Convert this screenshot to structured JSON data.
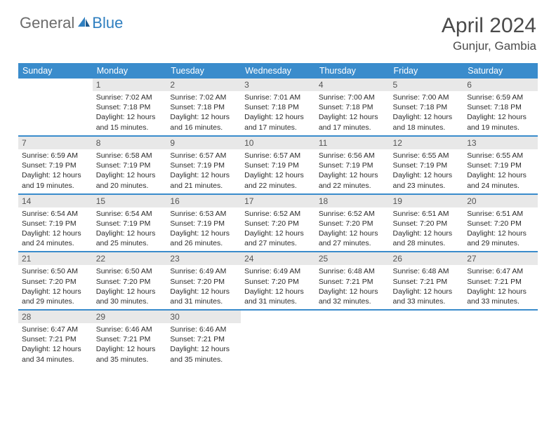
{
  "logo": {
    "general": "General",
    "blue": "Blue"
  },
  "title": "April 2024",
  "location": "Gunjur, Gambia",
  "colors": {
    "header_bg": "#3a8ccc",
    "header_text": "#ffffff",
    "daynum_bg": "#e8e8e8",
    "border": "#3a8ccc",
    "logo_gray": "#6b6b6b",
    "logo_blue": "#2f7fc0"
  },
  "weekdays": [
    "Sunday",
    "Monday",
    "Tuesday",
    "Wednesday",
    "Thursday",
    "Friday",
    "Saturday"
  ],
  "weeks": [
    [
      {
        "n": "",
        "sr": "",
        "ss": "",
        "dl": ""
      },
      {
        "n": "1",
        "sr": "Sunrise: 7:02 AM",
        "ss": "Sunset: 7:18 PM",
        "dl": "Daylight: 12 hours and 15 minutes."
      },
      {
        "n": "2",
        "sr": "Sunrise: 7:02 AM",
        "ss": "Sunset: 7:18 PM",
        "dl": "Daylight: 12 hours and 16 minutes."
      },
      {
        "n": "3",
        "sr": "Sunrise: 7:01 AM",
        "ss": "Sunset: 7:18 PM",
        "dl": "Daylight: 12 hours and 17 minutes."
      },
      {
        "n": "4",
        "sr": "Sunrise: 7:00 AM",
        "ss": "Sunset: 7:18 PM",
        "dl": "Daylight: 12 hours and 17 minutes."
      },
      {
        "n": "5",
        "sr": "Sunrise: 7:00 AM",
        "ss": "Sunset: 7:18 PM",
        "dl": "Daylight: 12 hours and 18 minutes."
      },
      {
        "n": "6",
        "sr": "Sunrise: 6:59 AM",
        "ss": "Sunset: 7:18 PM",
        "dl": "Daylight: 12 hours and 19 minutes."
      }
    ],
    [
      {
        "n": "7",
        "sr": "Sunrise: 6:59 AM",
        "ss": "Sunset: 7:19 PM",
        "dl": "Daylight: 12 hours and 19 minutes."
      },
      {
        "n": "8",
        "sr": "Sunrise: 6:58 AM",
        "ss": "Sunset: 7:19 PM",
        "dl": "Daylight: 12 hours and 20 minutes."
      },
      {
        "n": "9",
        "sr": "Sunrise: 6:57 AM",
        "ss": "Sunset: 7:19 PM",
        "dl": "Daylight: 12 hours and 21 minutes."
      },
      {
        "n": "10",
        "sr": "Sunrise: 6:57 AM",
        "ss": "Sunset: 7:19 PM",
        "dl": "Daylight: 12 hours and 22 minutes."
      },
      {
        "n": "11",
        "sr": "Sunrise: 6:56 AM",
        "ss": "Sunset: 7:19 PM",
        "dl": "Daylight: 12 hours and 22 minutes."
      },
      {
        "n": "12",
        "sr": "Sunrise: 6:55 AM",
        "ss": "Sunset: 7:19 PM",
        "dl": "Daylight: 12 hours and 23 minutes."
      },
      {
        "n": "13",
        "sr": "Sunrise: 6:55 AM",
        "ss": "Sunset: 7:19 PM",
        "dl": "Daylight: 12 hours and 24 minutes."
      }
    ],
    [
      {
        "n": "14",
        "sr": "Sunrise: 6:54 AM",
        "ss": "Sunset: 7:19 PM",
        "dl": "Daylight: 12 hours and 24 minutes."
      },
      {
        "n": "15",
        "sr": "Sunrise: 6:54 AM",
        "ss": "Sunset: 7:19 PM",
        "dl": "Daylight: 12 hours and 25 minutes."
      },
      {
        "n": "16",
        "sr": "Sunrise: 6:53 AM",
        "ss": "Sunset: 7:19 PM",
        "dl": "Daylight: 12 hours and 26 minutes."
      },
      {
        "n": "17",
        "sr": "Sunrise: 6:52 AM",
        "ss": "Sunset: 7:20 PM",
        "dl": "Daylight: 12 hours and 27 minutes."
      },
      {
        "n": "18",
        "sr": "Sunrise: 6:52 AM",
        "ss": "Sunset: 7:20 PM",
        "dl": "Daylight: 12 hours and 27 minutes."
      },
      {
        "n": "19",
        "sr": "Sunrise: 6:51 AM",
        "ss": "Sunset: 7:20 PM",
        "dl": "Daylight: 12 hours and 28 minutes."
      },
      {
        "n": "20",
        "sr": "Sunrise: 6:51 AM",
        "ss": "Sunset: 7:20 PM",
        "dl": "Daylight: 12 hours and 29 minutes."
      }
    ],
    [
      {
        "n": "21",
        "sr": "Sunrise: 6:50 AM",
        "ss": "Sunset: 7:20 PM",
        "dl": "Daylight: 12 hours and 29 minutes."
      },
      {
        "n": "22",
        "sr": "Sunrise: 6:50 AM",
        "ss": "Sunset: 7:20 PM",
        "dl": "Daylight: 12 hours and 30 minutes."
      },
      {
        "n": "23",
        "sr": "Sunrise: 6:49 AM",
        "ss": "Sunset: 7:20 PM",
        "dl": "Daylight: 12 hours and 31 minutes."
      },
      {
        "n": "24",
        "sr": "Sunrise: 6:49 AM",
        "ss": "Sunset: 7:20 PM",
        "dl": "Daylight: 12 hours and 31 minutes."
      },
      {
        "n": "25",
        "sr": "Sunrise: 6:48 AM",
        "ss": "Sunset: 7:21 PM",
        "dl": "Daylight: 12 hours and 32 minutes."
      },
      {
        "n": "26",
        "sr": "Sunrise: 6:48 AM",
        "ss": "Sunset: 7:21 PM",
        "dl": "Daylight: 12 hours and 33 minutes."
      },
      {
        "n": "27",
        "sr": "Sunrise: 6:47 AM",
        "ss": "Sunset: 7:21 PM",
        "dl": "Daylight: 12 hours and 33 minutes."
      }
    ],
    [
      {
        "n": "28",
        "sr": "Sunrise: 6:47 AM",
        "ss": "Sunset: 7:21 PM",
        "dl": "Daylight: 12 hours and 34 minutes."
      },
      {
        "n": "29",
        "sr": "Sunrise: 6:46 AM",
        "ss": "Sunset: 7:21 PM",
        "dl": "Daylight: 12 hours and 35 minutes."
      },
      {
        "n": "30",
        "sr": "Sunrise: 6:46 AM",
        "ss": "Sunset: 7:21 PM",
        "dl": "Daylight: 12 hours and 35 minutes."
      },
      {
        "n": "",
        "sr": "",
        "ss": "",
        "dl": ""
      },
      {
        "n": "",
        "sr": "",
        "ss": "",
        "dl": ""
      },
      {
        "n": "",
        "sr": "",
        "ss": "",
        "dl": ""
      },
      {
        "n": "",
        "sr": "",
        "ss": "",
        "dl": ""
      }
    ]
  ]
}
